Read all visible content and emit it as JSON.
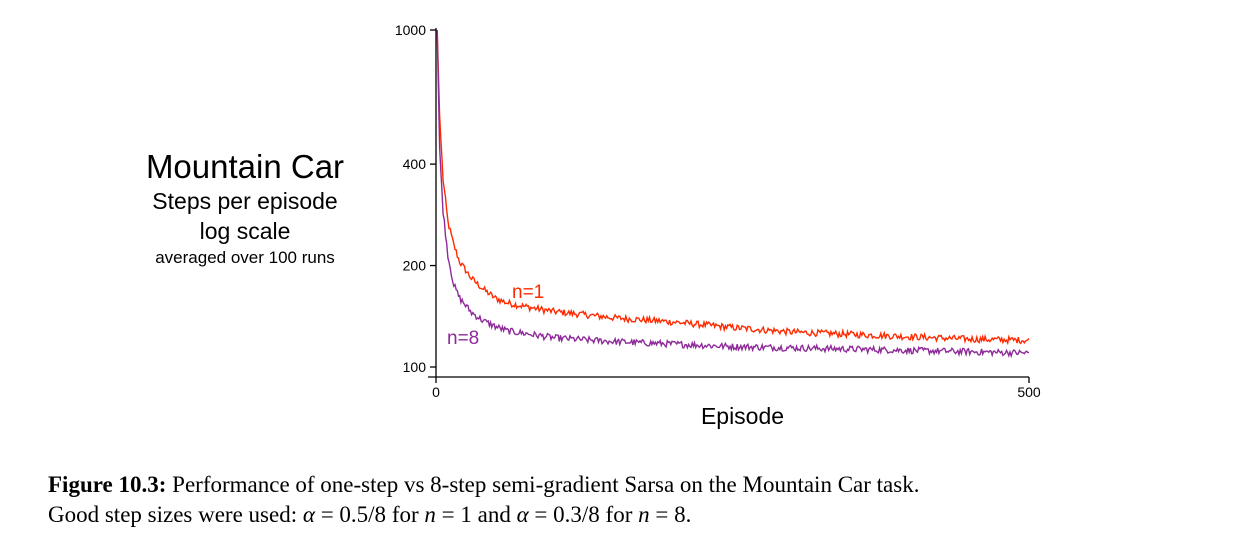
{
  "chart_data": {
    "type": "line",
    "title": "Mountain Car",
    "ylabel_lines": [
      "Steps per episode",
      "log scale",
      "averaged over 100 runs"
    ],
    "xlabel": "Episode",
    "x_ticks": [
      0,
      500
    ],
    "y_ticks": [
      100,
      200,
      400,
      1000
    ],
    "xlim": [
      0,
      500
    ],
    "ylim": [
      100,
      1000
    ],
    "y_scale": "log",
    "grid": false,
    "series": [
      {
        "name": "n=1",
        "color": "#ff2a00",
        "x": [
          1,
          3,
          6,
          10,
          15,
          20,
          30,
          40,
          50,
          60,
          80,
          100,
          150,
          200,
          250,
          300,
          350,
          400,
          450,
          500
        ],
        "values": [
          1000,
          560,
          360,
          270,
          230,
          205,
          183,
          170,
          160,
          155,
          150,
          146,
          140,
          136,
          131,
          127,
          125,
          123,
          121,
          120
        ]
      },
      {
        "name": "n=8",
        "color": "#8e2a99",
        "x": [
          1,
          3,
          6,
          10,
          15,
          20,
          30,
          40,
          50,
          60,
          80,
          100,
          150,
          200,
          250,
          300,
          350,
          400,
          450,
          500
        ],
        "values": [
          1000,
          450,
          290,
          215,
          175,
          160,
          145,
          137,
          132,
          128,
          125,
          122,
          119,
          117,
          115,
          114,
          113,
          112,
          111,
          110
        ]
      }
    ]
  },
  "caption": {
    "label": "Figure 10.3:",
    "line1": "Performance of one-step vs 8-step semi-gradient Sarsa on the Mountain Car task.",
    "line2_a": "Good step sizes were used: ",
    "alpha_sym": "α",
    "eq": " = ",
    "alpha1": "0.5/8",
    "for_text": " for ",
    "n_sym": "n",
    "n1": "1",
    "and_text": " and ",
    "alpha2": "0.3/8",
    "n2": "8",
    "period": "."
  }
}
